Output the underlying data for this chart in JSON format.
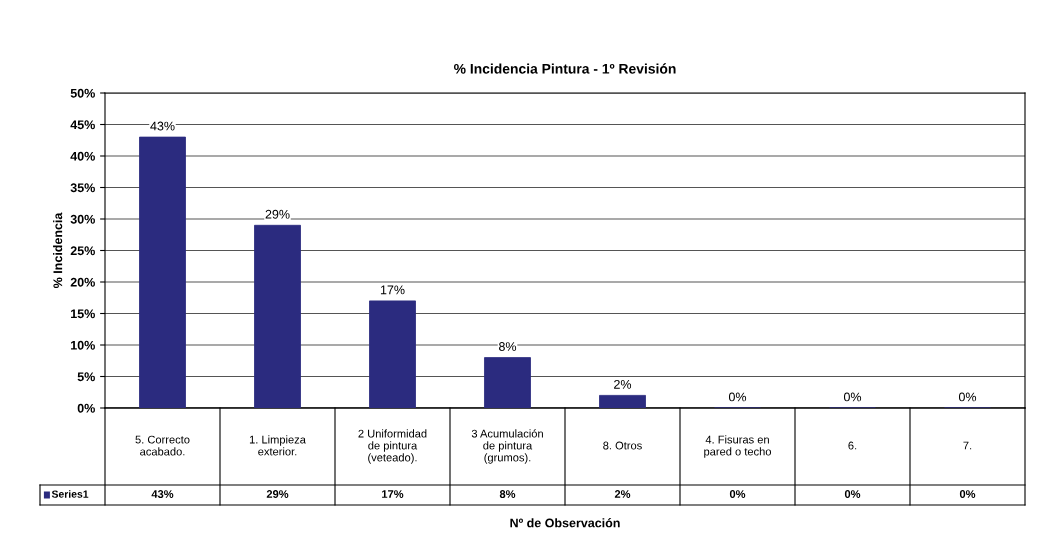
{
  "chart_data": {
    "type": "bar",
    "title": "% Incidencia Pintura - 1º Revisión",
    "xlabel": "Nº de Observación",
    "ylabel": "% Incidencia",
    "categories": [
      "5. Correcto acabado.",
      "1. Limpieza exterior.",
      "2 Uniformidad de pintura (veteado).",
      "3 Acumulación de pintura (grumos).",
      "8. Otros",
      "4. Fisuras en pared o techo",
      "6.",
      "7."
    ],
    "series": [
      {
        "name": "Series1",
        "color": "#2b2b7f",
        "values": [
          43,
          29,
          17,
          8,
          2,
          0,
          0,
          0
        ],
        "value_labels": [
          "43%",
          "29%",
          "17%",
          "8%",
          "2%",
          "0%",
          "0%",
          "0%"
        ]
      }
    ],
    "ylim": [
      0,
      50
    ],
    "yticks": [
      {
        "value": 0,
        "label": "0%"
      },
      {
        "value": 5,
        "label": "5%"
      },
      {
        "value": 10,
        "label": "10%"
      },
      {
        "value": 15,
        "label": "15%"
      },
      {
        "value": 20,
        "label": "20%"
      },
      {
        "value": 25,
        "label": "25%"
      },
      {
        "value": 30,
        "label": "30%"
      },
      {
        "value": 35,
        "label": "35%"
      },
      {
        "value": 40,
        "label": "40%"
      },
      {
        "value": 45,
        "label": "45%"
      },
      {
        "value": 50,
        "label": "50%"
      }
    ],
    "grid": "y"
  }
}
